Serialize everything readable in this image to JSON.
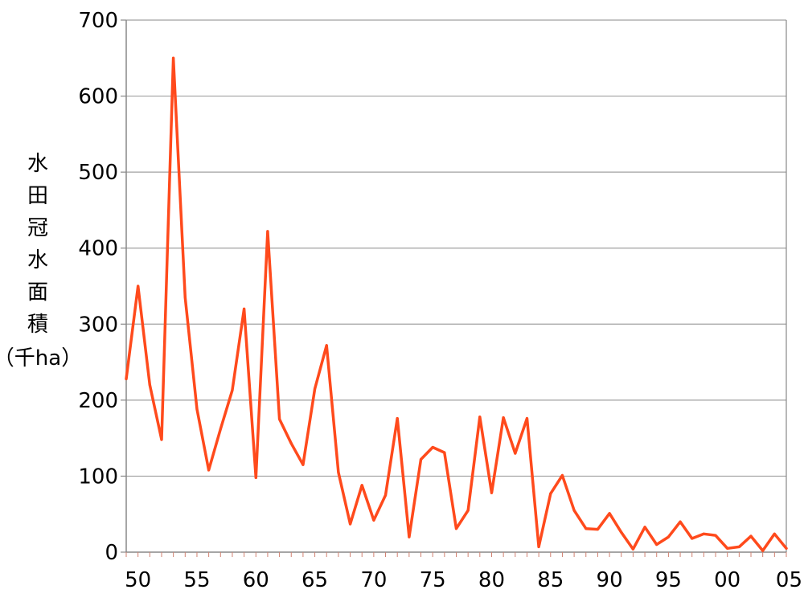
{
  "chart_data": {
    "type": "line",
    "title": "",
    "ylabel": "水田冠水面積（千ha）",
    "ylabel_lines": [
      "水",
      "田",
      "冠",
      "水",
      "面",
      "積",
      "（千ha）"
    ],
    "xlabel": "",
    "x": [
      1949,
      1950,
      1951,
      1952,
      1953,
      1954,
      1955,
      1956,
      1957,
      1958,
      1959,
      1960,
      1961,
      1962,
      1963,
      1964,
      1965,
      1966,
      1967,
      1968,
      1969,
      1970,
      1971,
      1972,
      1973,
      1974,
      1975,
      1976,
      1977,
      1978,
      1979,
      1980,
      1981,
      1982,
      1983,
      1984,
      1985,
      1986,
      1987,
      1988,
      1989,
      1990,
      1991,
      1992,
      1993,
      1994,
      1995,
      1996,
      1997,
      1998,
      1999,
      2000,
      2001,
      2002,
      2003,
      2004,
      2005
    ],
    "series": [
      {
        "values": [
          228,
          350,
          220,
          148,
          650,
          335,
          188,
          108,
          162,
          213,
          320,
          98,
          422,
          175,
          143,
          115,
          215,
          272,
          105,
          37,
          88,
          42,
          75,
          176,
          20,
          122,
          138,
          131,
          31,
          55,
          178,
          78,
          177,
          130,
          176,
          7,
          77,
          101,
          55,
          31,
          30,
          51,
          26,
          4,
          33,
          10,
          20,
          40,
          18,
          24,
          22,
          5,
          7,
          21,
          2,
          24,
          5
        ],
        "color": "#ff4a1c"
      }
    ],
    "xlim": [
      1949,
      2005
    ],
    "ylim": [
      0,
      700
    ],
    "yticks": [
      0,
      100,
      200,
      300,
      400,
      500,
      600,
      700
    ],
    "xtick_values": [
      1950,
      1955,
      1960,
      1965,
      1970,
      1975,
      1980,
      1985,
      1990,
      1995,
      2000,
      2005
    ],
    "xtick_labels": [
      "50",
      "55",
      "60",
      "65",
      "70",
      "75",
      "80",
      "85",
      "90",
      "95",
      "00",
      "05"
    ],
    "ytick_labels": [
      "0",
      "100",
      "200",
      "300",
      "400",
      "500",
      "600",
      "700"
    ],
    "grid": true,
    "legend": "none",
    "gridline_color": "#a0a0a0",
    "axis_color": "#888888"
  }
}
